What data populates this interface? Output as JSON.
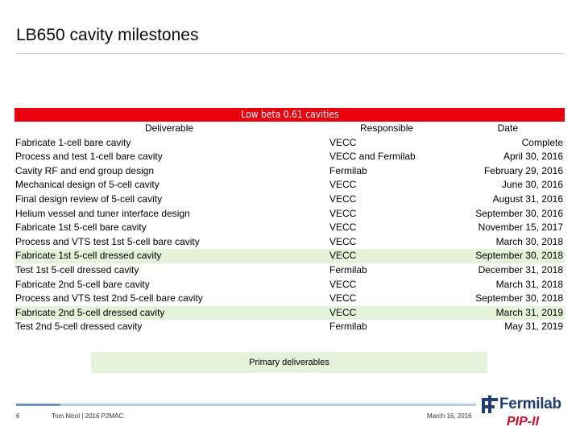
{
  "slide": {
    "title": "LB650 cavity milestones",
    "page_number": "6",
    "presenter": "Tom Nicol | 2016 P2MAC",
    "date": "March 16, 2016",
    "logo_text": "Fermilab",
    "program_mark": "PIP-II"
  },
  "table": {
    "band_title": "Low beta 0.61 cavities",
    "headers": {
      "deliverable": "Deliverable",
      "responsible": "Responsible",
      "date": "Date"
    },
    "rows": [
      {
        "deliverable": "Fabricate 1-cell bare cavity",
        "responsible": "VECC",
        "date": "Complete",
        "primary": false
      },
      {
        "deliverable": "Process and test 1-cell bare cavity",
        "responsible": "VECC and Fermilab",
        "date": "April 30, 2016",
        "primary": false
      },
      {
        "deliverable": "Cavity RF and end group design",
        "responsible": "Fermilab",
        "date": "February 29, 2016",
        "primary": false
      },
      {
        "deliverable": "Mechanical design of 5-cell cavity",
        "responsible": "VECC",
        "date": "June 30, 2016",
        "primary": false
      },
      {
        "deliverable": "Final design review of 5-cell cavity",
        "responsible": "VECC",
        "date": "August 31, 2016",
        "primary": false
      },
      {
        "deliverable": "Helium vessel and tuner interface design",
        "responsible": "VECC",
        "date": "September 30, 2016",
        "primary": false
      },
      {
        "deliverable": "Fabricate 1st 5-cell bare cavity",
        "responsible": "VECC",
        "date": "November 15, 2017",
        "primary": false
      },
      {
        "deliverable": "Process and VTS test 1st 5-cell bare cavity",
        "responsible": "VECC",
        "date": "March 30, 2018",
        "primary": false
      },
      {
        "deliverable": "Fabricate 1st 5-cell dressed cavity",
        "responsible": "VECC",
        "date": "September 30, 2018",
        "primary": true
      },
      {
        "deliverable": "Test 1st 5-cell dressed cavity",
        "responsible": "Fermilab",
        "date": "December 31, 2018",
        "primary": false
      },
      {
        "deliverable": "Fabricate 2nd 5-cell bare cavity",
        "responsible": "VECC",
        "date": "March 31, 2018",
        "primary": false
      },
      {
        "deliverable": "Process and VTS test 2nd 5-cell bare cavity",
        "responsible": "VECC",
        "date": "September 30, 2018",
        "primary": false
      },
      {
        "deliverable": "Fabricate 2nd 5-cell dressed cavity",
        "responsible": "VECC",
        "date": "March 31, 2019",
        "primary": true
      },
      {
        "deliverable": "Test 2nd 5-cell dressed cavity",
        "responsible": "Fermilab",
        "date": "May 31, 2019",
        "primary": false
      }
    ]
  },
  "legend": {
    "primary_label": "Primary deliverables"
  },
  "colors": {
    "band": "#e8000e",
    "primary_highlight": "#e3f2d9",
    "logo_blue": "#1f3f73",
    "pip_red": "#c8102e"
  },
  "icons": [
    "fermilab-logo-icon"
  ]
}
